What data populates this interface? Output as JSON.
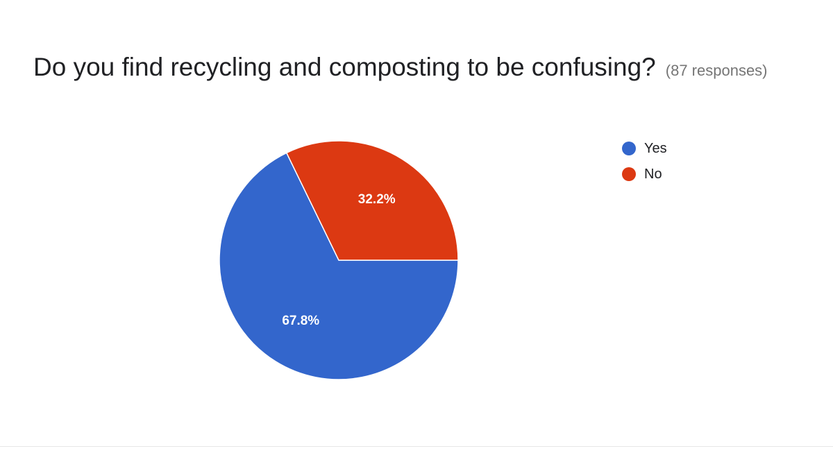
{
  "question": {
    "title": "Do you find recycling and composting to be confusing?",
    "responses": "(87 responses)"
  },
  "chart_data": {
    "type": "pie",
    "title": "Do you find recycling and composting to be confusing?",
    "total_responses": 87,
    "slices": [
      {
        "label": "Yes",
        "value": 67.8,
        "display": "67.8%",
        "color": "#3366cc"
      },
      {
        "label": "No",
        "value": 32.2,
        "display": "32.2%",
        "color": "#dc3912"
      }
    ],
    "legend_position": "right"
  }
}
